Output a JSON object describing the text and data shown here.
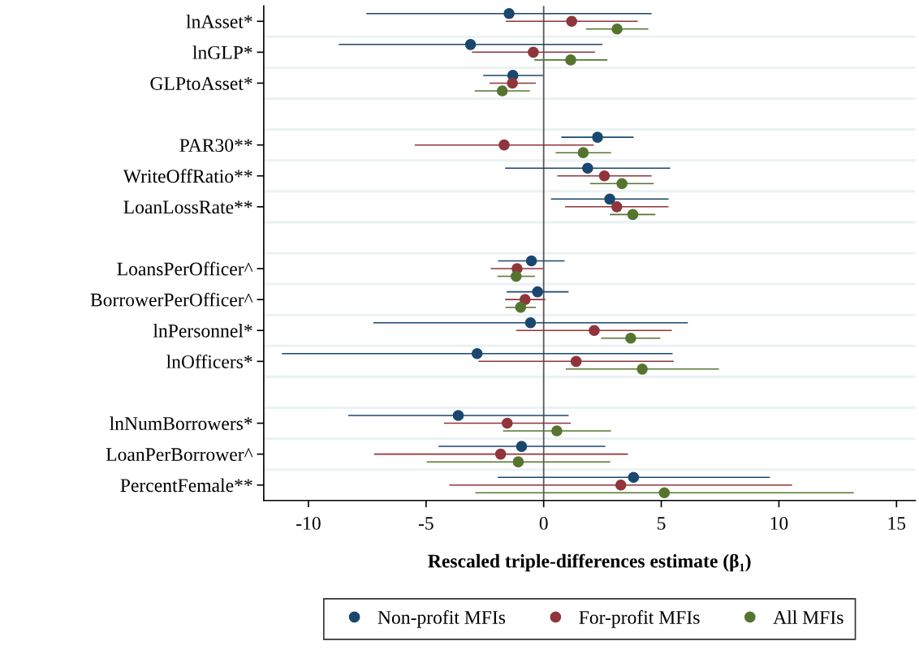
{
  "chart_data": {
    "type": "scatter",
    "orientation": "horizontal",
    "categories": [
      "lnAsset*",
      "lnGLP*",
      "GLPtoAsset*",
      null,
      "PAR30**",
      "WriteOffRatio**",
      "LoanLossRate**",
      null,
      "LoansPerOfficer^",
      "BorrowerPerOfficer^",
      "lnPersonnel*",
      "lnOfficers*",
      null,
      "lnNumBorrowers*",
      "LoanPerBorrower^",
      "PercentFemale**"
    ],
    "xlabel": "Rescaled triple-differences estimate (β₁)",
    "xlim": [
      -11.9,
      15.8
    ],
    "xticks": [
      -10,
      -5,
      0,
      5,
      10,
      15
    ],
    "grid": "y",
    "legend": "bottom",
    "marker": "circle",
    "ref_lines": [
      {
        "axis": "x",
        "value": 0,
        "color": "#595959"
      }
    ],
    "series": [
      {
        "name": "Non-profit MFIs",
        "color": "#1a476f",
        "values": [
          -1.47,
          -3.11,
          -1.31,
          null,
          2.29,
          1.87,
          2.81,
          null,
          -0.52,
          -0.26,
          -0.56,
          -2.83,
          null,
          -3.63,
          -0.94,
          3.82
        ],
        "errors": [
          [
            -7.54,
            4.59
          ],
          [
            -8.71,
            2.5
          ],
          [
            -2.57,
            -0.03
          ],
          null,
          [
            0.75,
            3.82
          ],
          [
            -1.64,
            5.38
          ],
          [
            0.31,
            5.31
          ],
          null,
          [
            -1.94,
            0.89
          ],
          [
            -1.57,
            1.06
          ],
          [
            -7.24,
            6.13
          ],
          [
            -11.13,
            5.48
          ],
          null,
          [
            -8.31,
            1.06
          ],
          [
            -4.47,
            2.62
          ],
          [
            -1.95,
            9.62
          ]
        ]
      },
      {
        "name": "For-profit MFIs",
        "color": "#90353b",
        "values": [
          1.19,
          -0.44,
          -1.33,
          null,
          -1.68,
          2.58,
          3.11,
          null,
          -1.13,
          -0.79,
          2.15,
          1.38,
          null,
          -1.55,
          -1.83,
          3.28
        ],
        "errors": [
          [
            -1.61,
            4.0
          ],
          [
            -3.05,
            2.18
          ],
          [
            -2.3,
            -0.33
          ],
          null,
          [
            -5.48,
            2.13
          ],
          [
            0.58,
            4.59
          ],
          [
            0.91,
            5.31
          ],
          null,
          [
            -2.25,
            -0.03
          ],
          [
            -1.64,
            0.07
          ],
          [
            -1.17,
            5.45
          ],
          [
            -2.77,
            5.53
          ],
          null,
          [
            -4.24,
            1.15
          ],
          [
            -7.21,
            3.58
          ],
          [
            -4.01,
            10.56
          ]
        ]
      },
      {
        "name": "All MFIs",
        "color": "#55752f",
        "values": [
          3.12,
          1.15,
          -1.76,
          null,
          1.68,
          3.33,
          3.79,
          null,
          -1.17,
          -0.98,
          3.7,
          4.19,
          null,
          0.56,
          -1.08,
          5.13
        ],
        "errors": [
          [
            1.8,
            4.45
          ],
          [
            -0.4,
            2.71
          ],
          [
            -2.93,
            -0.59
          ],
          null,
          [
            0.51,
            2.86
          ],
          [
            1.97,
            4.68
          ],
          [
            2.81,
            4.75
          ],
          null,
          [
            -1.97,
            -0.37
          ],
          [
            -1.62,
            -0.33
          ],
          [
            2.44,
            4.96
          ],
          [
            0.94,
            7.45
          ],
          null,
          [
            -1.73,
            2.86
          ],
          [
            -4.97,
            2.83
          ],
          [
            -2.9,
            13.18
          ]
        ]
      }
    ]
  }
}
